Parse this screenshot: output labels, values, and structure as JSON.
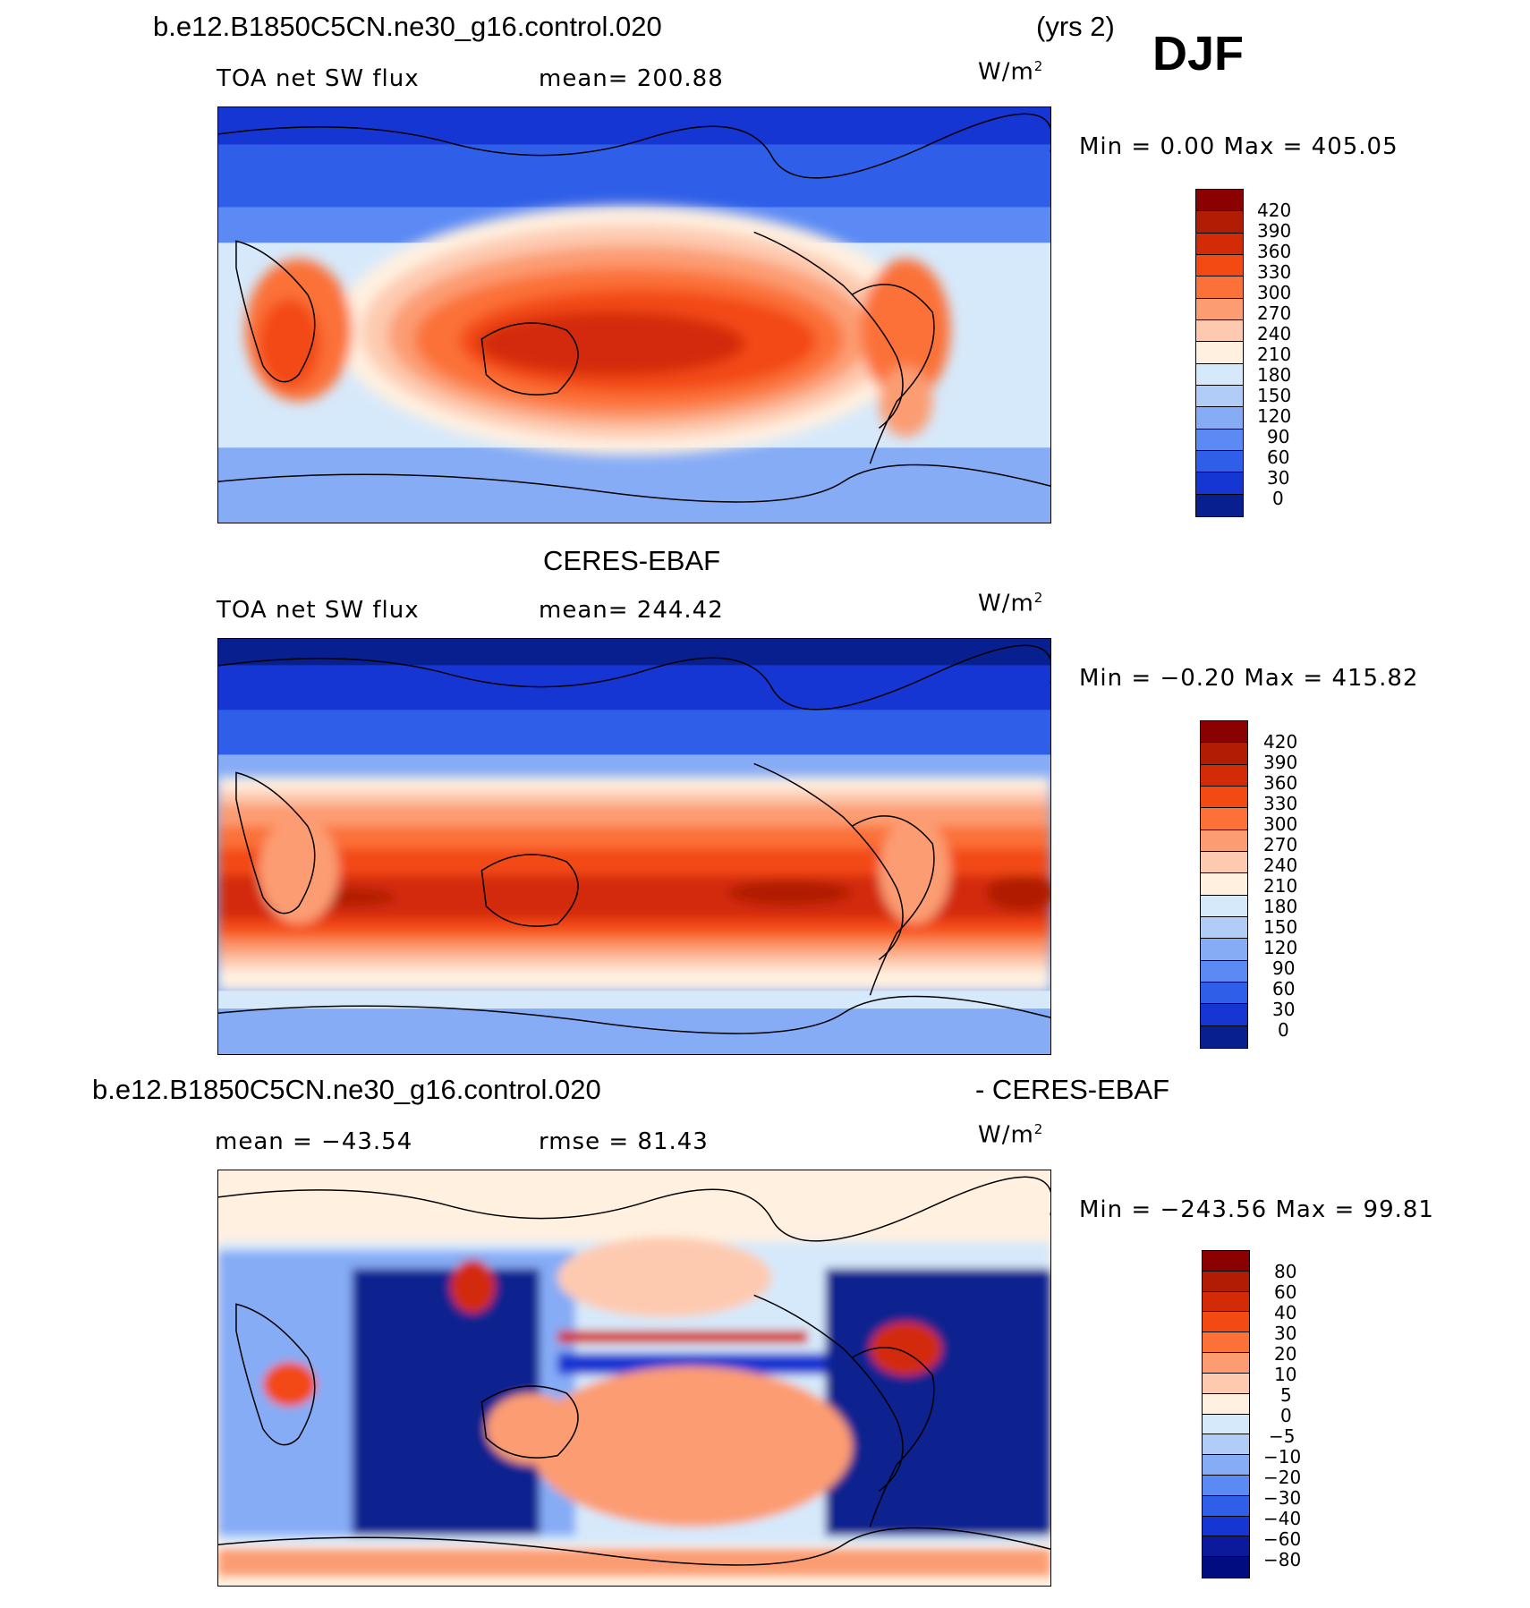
{
  "season": "DJF",
  "panels": [
    {
      "case_title": "b.e12.B1850C5CN.ne30_g16.control.020",
      "years": "(yrs 2)",
      "variable": "TOA net SW flux",
      "stat_text": "mean=  200.88",
      "units": "W/m",
      "units_sup": "2",
      "minmax": "Min =    0.00  Max  =  405.05"
    },
    {
      "case_title": "CERES-EBAF",
      "variable": "TOA net SW flux",
      "stat_text": "mean=  244.42",
      "units": "W/m",
      "units_sup": "2",
      "minmax": "Min =   −0.20  Max  =  415.82"
    },
    {
      "case_title": "b.e12.B1850C5CN.ne30_g16.control.020",
      "case_title_suffix": "- CERES-EBAF",
      "stat_left": "mean  =  −43.54",
      "stat_right": "rmse  =   81.43",
      "units": "W/m",
      "units_sup": "2",
      "minmax": "Min = −243.56  Max =    99.81"
    }
  ],
  "chart_data": [
    {
      "type": "heatmap",
      "title": "b.e12.B1850C5CN.ne30_g16.control.020 TOA net SW flux",
      "projection": "global cylindrical equidistant, centered on Pacific",
      "mean": 200.88,
      "min": 0.0,
      "max": 405.05,
      "units": "W/m2",
      "colorbar_levels": [
        "420",
        "390",
        "360",
        "330",
        "300",
        "270",
        "240",
        "210",
        "180",
        "150",
        "120",
        "90",
        "60",
        "30",
        "0"
      ],
      "colorbar_colors": [
        "#8b0000",
        "#b01d04",
        "#d32b08",
        "#f34a14",
        "#fb7138",
        "#fc9c72",
        "#fdcab0",
        "#fff0e0",
        "#d6e9fb",
        "#b0ccf7",
        "#86acf6",
        "#5b8af5",
        "#2f5fe8",
        "#1536d2",
        "#08208f"
      ]
    },
    {
      "type": "heatmap",
      "title": "CERES-EBAF TOA net SW flux",
      "mean": 244.42,
      "min": -0.2,
      "max": 415.82,
      "units": "W/m2",
      "colorbar_levels": [
        "420",
        "390",
        "360",
        "330",
        "300",
        "270",
        "240",
        "210",
        "180",
        "150",
        "120",
        "90",
        "60",
        "30",
        "0"
      ],
      "colorbar_colors": [
        "#8b0000",
        "#b01d04",
        "#d32b08",
        "#f34a14",
        "#fb7138",
        "#fc9c72",
        "#fdcab0",
        "#fff0e0",
        "#d6e9fb",
        "#b0ccf7",
        "#86acf6",
        "#5b8af5",
        "#2f5fe8",
        "#1536d2",
        "#08208f"
      ]
    },
    {
      "type": "heatmap",
      "title": "b.e12.B1850C5CN.ne30_g16.control.020 - CERES-EBAF",
      "mean": -43.54,
      "rmse": 81.43,
      "min": -243.56,
      "max": 99.81,
      "units": "W/m2",
      "colorbar_levels": [
        "80",
        "60",
        "40",
        "30",
        "20",
        "10",
        "5",
        "0",
        "−5",
        "−10",
        "−20",
        "−30",
        "−40",
        "−60",
        "−80"
      ],
      "colorbar_colors": [
        "#8b0000",
        "#b01d04",
        "#d32b08",
        "#f34a14",
        "#fb7138",
        "#fc9c72",
        "#fdcab0",
        "#fff0e0",
        "#d6e9fb",
        "#b0ccf7",
        "#86acf6",
        "#5b8af5",
        "#2f5fe8",
        "#1536d2",
        "#0a1a9a",
        "#000c80"
      ]
    }
  ]
}
